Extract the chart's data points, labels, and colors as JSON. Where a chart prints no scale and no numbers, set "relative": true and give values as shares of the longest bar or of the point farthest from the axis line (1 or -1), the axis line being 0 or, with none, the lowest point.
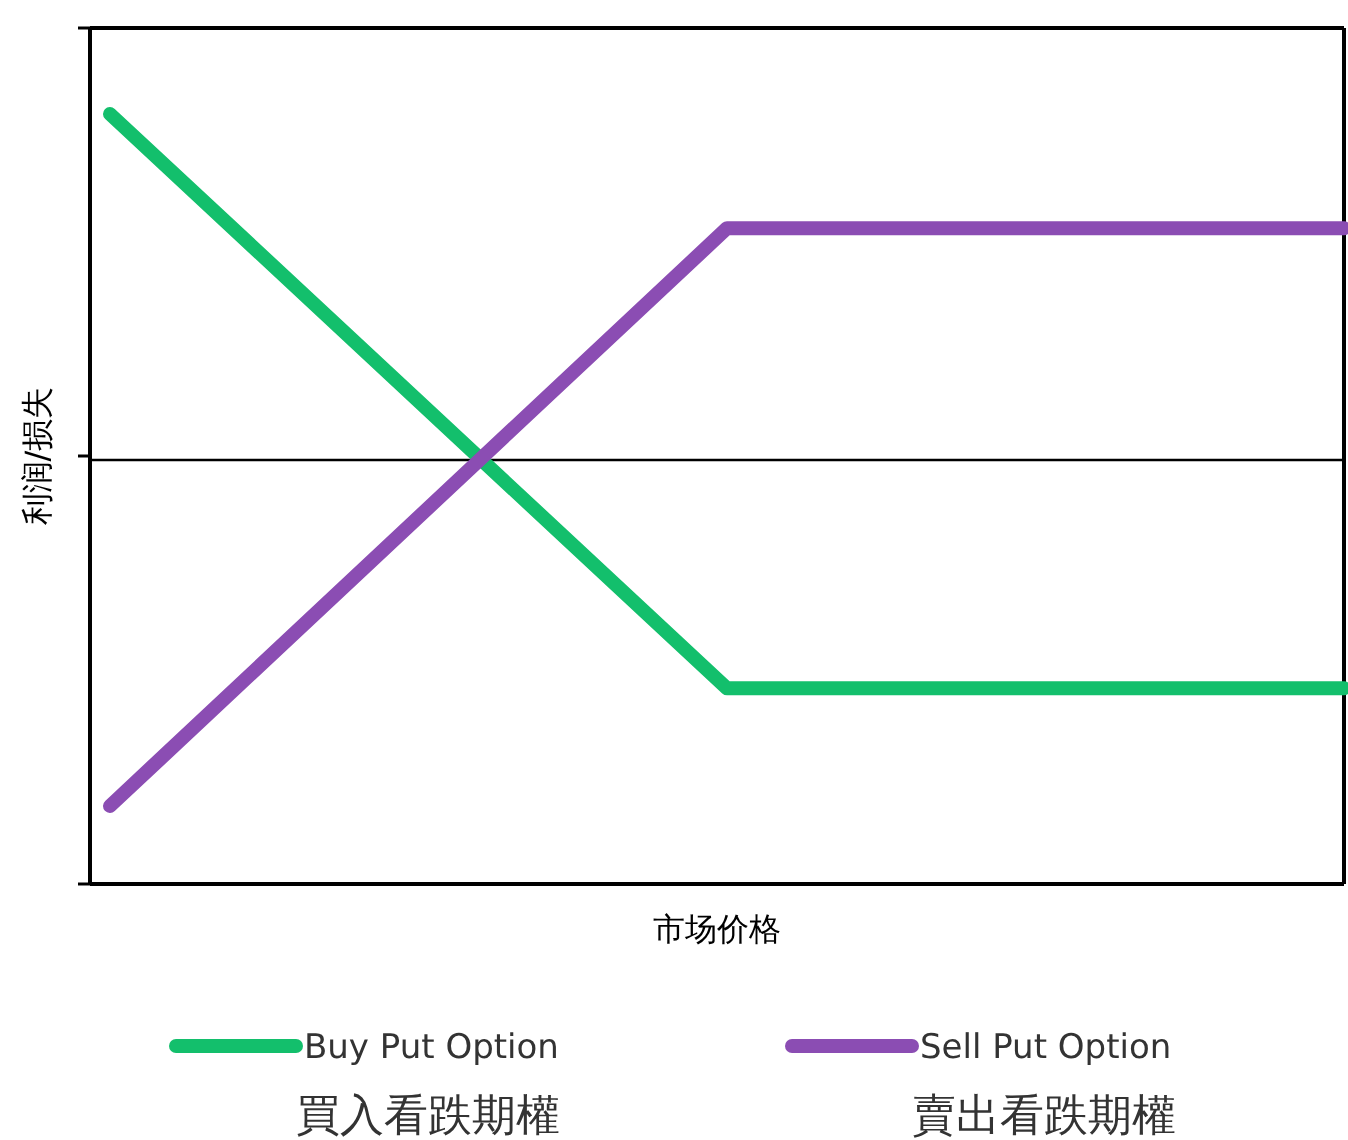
{
  "chart_data": {
    "type": "line",
    "relative": true,
    "xlabel": "市场价格",
    "ylabel": "利润/损失",
    "categories": [
      null,
      null,
      null
    ],
    "legend": "bottom",
    "marker": "none",
    "line_style": "solid",
    "series": [
      {
        "name": "Buy Put Option\n買入看跌期權",
        "color": "#13bf6c",
        "values": [
          1,
          -0.66,
          -0.66
        ]
      },
      {
        "name": "Sell Put Option\n賣出看跌期權",
        "color": "#8b4db3",
        "values": [
          -1,
          0.67,
          0.67
        ]
      }
    ]
  }
}
